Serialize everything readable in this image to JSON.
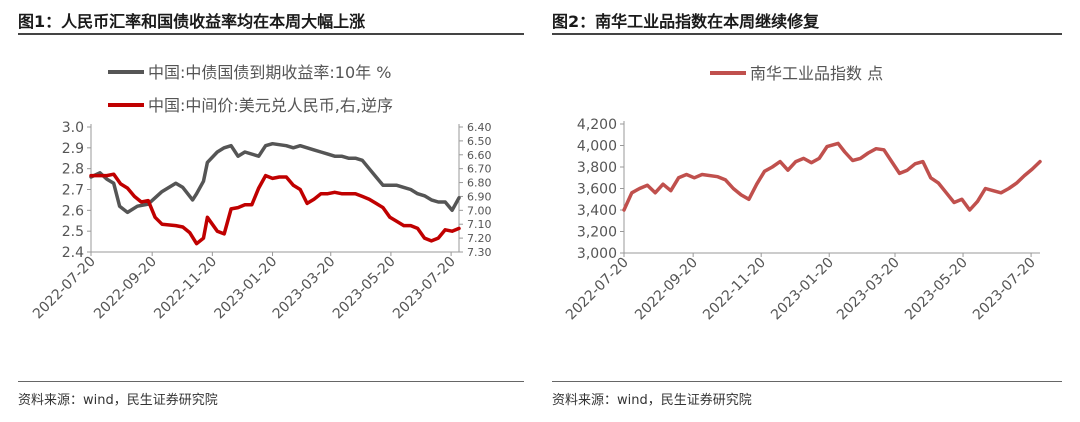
{
  "panels": [
    {
      "title": "图1：人民币汇率和国债收益率均在本周大幅上涨",
      "source": "资料来源：wind，民生证券研究院"
    },
    {
      "title": "图2：南华工业品指数在本周继续修复",
      "source": "资料来源：wind，民生证券研究院"
    }
  ],
  "chart_data": [
    {
      "type": "line",
      "title": "",
      "x_tick_labels": [
        "2022-07-20",
        "2022-09-20",
        "2022-11-20",
        "2023-01-20",
        "2023-03-20",
        "2023-05-20",
        "2023-07-20"
      ],
      "x_range": [
        "2022-07-20",
        "2023-07-28"
      ],
      "y_left": {
        "range": [
          2.4,
          3.0
        ],
        "ticks": [
          "3.0",
          "2.9",
          "2.8",
          "2.7",
          "2.6",
          "2.5",
          "2.4"
        ]
      },
      "y_right": {
        "range": [
          6.4,
          7.3
        ],
        "inverted": true,
        "ticks": [
          "6.40",
          "6.50",
          "6.60",
          "6.70",
          "6.80",
          "6.90",
          "7.00",
          "7.10",
          "7.20",
          "7.30"
        ]
      },
      "grid": false,
      "legend_position": "top",
      "series": [
        {
          "name": "中国:中债国债到期收益率:10年 %",
          "axis": "left",
          "color": "#555555",
          "points": [
            [
              "2022-07-20",
              2.76
            ],
            [
              "2022-07-29",
              2.78
            ],
            [
              "2022-08-05",
              2.75
            ],
            [
              "2022-08-12",
              2.73
            ],
            [
              "2022-08-18",
              2.62
            ],
            [
              "2022-08-26",
              2.59
            ],
            [
              "2022-09-05",
              2.62
            ],
            [
              "2022-09-16",
              2.63
            ],
            [
              "2022-09-23",
              2.66
            ],
            [
              "2022-09-30",
              2.69
            ],
            [
              "2022-10-14",
              2.73
            ],
            [
              "2022-10-21",
              2.71
            ],
            [
              "2022-10-31",
              2.65
            ],
            [
              "2022-11-04",
              2.68
            ],
            [
              "2022-11-11",
              2.74
            ],
            [
              "2022-11-15",
              2.83
            ],
            [
              "2022-11-25",
              2.88
            ],
            [
              "2022-12-02",
              2.9
            ],
            [
              "2022-12-09",
              2.91
            ],
            [
              "2022-12-16",
              2.86
            ],
            [
              "2022-12-23",
              2.88
            ],
            [
              "2023-01-06",
              2.86
            ],
            [
              "2023-01-13",
              2.91
            ],
            [
              "2023-01-20",
              2.92
            ],
            [
              "2023-02-03",
              2.91
            ],
            [
              "2023-02-10",
              2.9
            ],
            [
              "2023-02-17",
              2.91
            ],
            [
              "2023-02-24",
              2.9
            ],
            [
              "2023-03-03",
              2.89
            ],
            [
              "2023-03-10",
              2.88
            ],
            [
              "2023-03-17",
              2.87
            ],
            [
              "2023-03-24",
              2.86
            ],
            [
              "2023-03-31",
              2.86
            ],
            [
              "2023-04-07",
              2.85
            ],
            [
              "2023-04-14",
              2.85
            ],
            [
              "2023-04-21",
              2.84
            ],
            [
              "2023-04-28",
              2.8
            ],
            [
              "2023-05-05",
              2.76
            ],
            [
              "2023-05-12",
              2.72
            ],
            [
              "2023-05-19",
              2.72
            ],
            [
              "2023-05-26",
              2.72
            ],
            [
              "2023-06-02",
              2.71
            ],
            [
              "2023-06-09",
              2.7
            ],
            [
              "2023-06-16",
              2.68
            ],
            [
              "2023-06-23",
              2.67
            ],
            [
              "2023-06-30",
              2.65
            ],
            [
              "2023-07-07",
              2.64
            ],
            [
              "2023-07-14",
              2.64
            ],
            [
              "2023-07-21",
              2.6
            ],
            [
              "2023-07-28",
              2.66
            ]
          ]
        },
        {
          "name": "中国:中间价:美元兑人民币,右,逆序",
          "axis": "right",
          "color": "#c00000",
          "points": [
            [
              "2022-07-20",
              6.75
            ],
            [
              "2022-07-29",
              6.75
            ],
            [
              "2022-08-05",
              6.75
            ],
            [
              "2022-08-12",
              6.74
            ],
            [
              "2022-08-19",
              6.81
            ],
            [
              "2022-08-26",
              6.84
            ],
            [
              "2022-09-02",
              6.9
            ],
            [
              "2022-09-09",
              6.94
            ],
            [
              "2022-09-16",
              6.93
            ],
            [
              "2022-09-23",
              7.05
            ],
            [
              "2022-09-30",
              7.1
            ],
            [
              "2022-10-14",
              7.11
            ],
            [
              "2022-10-21",
              7.12
            ],
            [
              "2022-10-28",
              7.16
            ],
            [
              "2022-11-04",
              7.24
            ],
            [
              "2022-11-11",
              7.2
            ],
            [
              "2022-11-15",
              7.05
            ],
            [
              "2022-11-25",
              7.15
            ],
            [
              "2022-12-02",
              7.17
            ],
            [
              "2022-12-09",
              6.99
            ],
            [
              "2022-12-16",
              6.98
            ],
            [
              "2022-12-23",
              6.96
            ],
            [
              "2022-12-30",
              6.96
            ],
            [
              "2023-01-06",
              6.84
            ],
            [
              "2023-01-13",
              6.75
            ],
            [
              "2023-01-20",
              6.77
            ],
            [
              "2023-01-27",
              6.76
            ],
            [
              "2023-02-03",
              6.76
            ],
            [
              "2023-02-10",
              6.82
            ],
            [
              "2023-02-17",
              6.85
            ],
            [
              "2023-02-24",
              6.95
            ],
            [
              "2023-03-03",
              6.92
            ],
            [
              "2023-03-10",
              6.88
            ],
            [
              "2023-03-17",
              6.88
            ],
            [
              "2023-03-24",
              6.87
            ],
            [
              "2023-03-31",
              6.88
            ],
            [
              "2023-04-07",
              6.88
            ],
            [
              "2023-04-14",
              6.88
            ],
            [
              "2023-04-21",
              6.9
            ],
            [
              "2023-04-28",
              6.92
            ],
            [
              "2023-05-05",
              6.95
            ],
            [
              "2023-05-12",
              6.98
            ],
            [
              "2023-05-19",
              7.05
            ],
            [
              "2023-05-26",
              7.08
            ],
            [
              "2023-06-02",
              7.11
            ],
            [
              "2023-06-09",
              7.11
            ],
            [
              "2023-06-16",
              7.13
            ],
            [
              "2023-06-23",
              7.2
            ],
            [
              "2023-06-30",
              7.22
            ],
            [
              "2023-07-07",
              7.2
            ],
            [
              "2023-07-14",
              7.14
            ],
            [
              "2023-07-21",
              7.15
            ],
            [
              "2023-07-28",
              7.13
            ]
          ]
        }
      ]
    },
    {
      "type": "line",
      "title": "",
      "x_tick_labels": [
        "2022-07-20",
        "2022-09-20",
        "2022-11-20",
        "2023-01-20",
        "2023-03-20",
        "2023-05-20",
        "2023-07-20"
      ],
      "x_range": [
        "2022-07-20",
        "2023-07-28"
      ],
      "y_left": {
        "range": [
          3000,
          4200
        ],
        "ticks": [
          "4,200",
          "4,000",
          "3,800",
          "3,600",
          "3,400",
          "3,200",
          "3,000"
        ]
      },
      "grid": false,
      "legend_position": "top",
      "series": [
        {
          "name": "南华工业品指数 点",
          "axis": "left",
          "color": "#c0504d",
          "points": [
            [
              "2022-07-20",
              3400
            ],
            [
              "2022-07-27",
              3560
            ],
            [
              "2022-08-03",
              3600
            ],
            [
              "2022-08-10",
              3630
            ],
            [
              "2022-08-17",
              3560
            ],
            [
              "2022-08-24",
              3640
            ],
            [
              "2022-08-31",
              3580
            ],
            [
              "2022-09-07",
              3700
            ],
            [
              "2022-09-14",
              3730
            ],
            [
              "2022-09-21",
              3700
            ],
            [
              "2022-09-28",
              3730
            ],
            [
              "2022-10-12",
              3710
            ],
            [
              "2022-10-19",
              3680
            ],
            [
              "2022-10-26",
              3600
            ],
            [
              "2022-11-02",
              3540
            ],
            [
              "2022-11-09",
              3500
            ],
            [
              "2022-11-16",
              3640
            ],
            [
              "2022-11-23",
              3760
            ],
            [
              "2022-11-30",
              3800
            ],
            [
              "2022-12-07",
              3850
            ],
            [
              "2022-12-14",
              3770
            ],
            [
              "2022-12-21",
              3850
            ],
            [
              "2022-12-28",
              3880
            ],
            [
              "2023-01-04",
              3840
            ],
            [
              "2023-01-11",
              3880
            ],
            [
              "2023-01-18",
              3990
            ],
            [
              "2023-01-28",
              4020
            ],
            [
              "2023-02-03",
              3940
            ],
            [
              "2023-02-10",
              3860
            ],
            [
              "2023-02-17",
              3880
            ],
            [
              "2023-02-24",
              3930
            ],
            [
              "2023-03-03",
              3970
            ],
            [
              "2023-03-10",
              3960
            ],
            [
              "2023-03-17",
              3850
            ],
            [
              "2023-03-24",
              3740
            ],
            [
              "2023-03-31",
              3770
            ],
            [
              "2023-04-07",
              3830
            ],
            [
              "2023-04-14",
              3850
            ],
            [
              "2023-04-21",
              3700
            ],
            [
              "2023-04-28",
              3650
            ],
            [
              "2023-05-05",
              3560
            ],
            [
              "2023-05-12",
              3470
            ],
            [
              "2023-05-19",
              3500
            ],
            [
              "2023-05-26",
              3400
            ],
            [
              "2023-06-02",
              3480
            ],
            [
              "2023-06-09",
              3600
            ],
            [
              "2023-06-16",
              3580
            ],
            [
              "2023-06-23",
              3560
            ],
            [
              "2023-06-30",
              3600
            ],
            [
              "2023-07-07",
              3650
            ],
            [
              "2023-07-14",
              3720
            ],
            [
              "2023-07-21",
              3780
            ],
            [
              "2023-07-28",
              3850
            ]
          ]
        }
      ]
    }
  ]
}
